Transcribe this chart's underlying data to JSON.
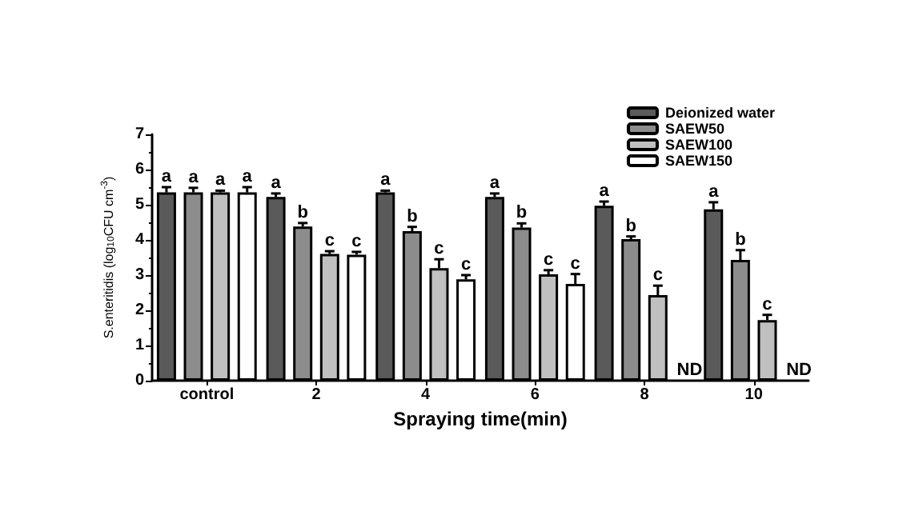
{
  "chart_data": {
    "type": "bar",
    "xlabel": "Spraying time(min)",
    "ylabel": "S.enteritidis (log$_{10}$CFU cm$^{-3}$)",
    "categories": [
      "control",
      "2",
      "4",
      "6",
      "8",
      "10"
    ],
    "series": [
      {
        "name": "Deionized water",
        "color": "#5a5a5a",
        "values": [
          5.35,
          5.22,
          5.35,
          5.22,
          4.97,
          4.87
        ],
        "errors": [
          0.15,
          0.1,
          0.05,
          0.1,
          0.12,
          0.2
        ],
        "value_labels": [
          "a",
          "a",
          "a",
          "a",
          "a",
          "a"
        ]
      },
      {
        "name": "SAEW50",
        "color": "#8c8c8c",
        "values": [
          5.35,
          4.38,
          4.25,
          4.35,
          4.02,
          3.43
        ],
        "errors": [
          0.13,
          0.1,
          0.12,
          0.12,
          0.08,
          0.28
        ],
        "value_labels": [
          "a",
          "b",
          "b",
          "b",
          "b",
          "b"
        ]
      },
      {
        "name": "SAEW100",
        "color": "#c0c0c0",
        "values": [
          5.35,
          3.6,
          3.2,
          3.02,
          2.43,
          1.72
        ],
        "errors": [
          0.05,
          0.08,
          0.25,
          0.12,
          0.27,
          0.15
        ],
        "value_labels": [
          "a",
          "c",
          "c",
          "c",
          "c",
          "c"
        ]
      },
      {
        "name": "SAEW150",
        "color": "#ffffff",
        "values": [
          5.35,
          3.58,
          2.88,
          2.75,
          null,
          null
        ],
        "errors": [
          0.15,
          0.08,
          0.12,
          0.28,
          null,
          null
        ],
        "value_labels": [
          "a",
          "c",
          "c",
          "c",
          "ND",
          "ND"
        ]
      }
    ],
    "ylim": [
      0,
      7
    ],
    "yticks": [
      0,
      1,
      2,
      3,
      4,
      5,
      6,
      7
    ],
    "grid": false,
    "legend": "top right"
  }
}
